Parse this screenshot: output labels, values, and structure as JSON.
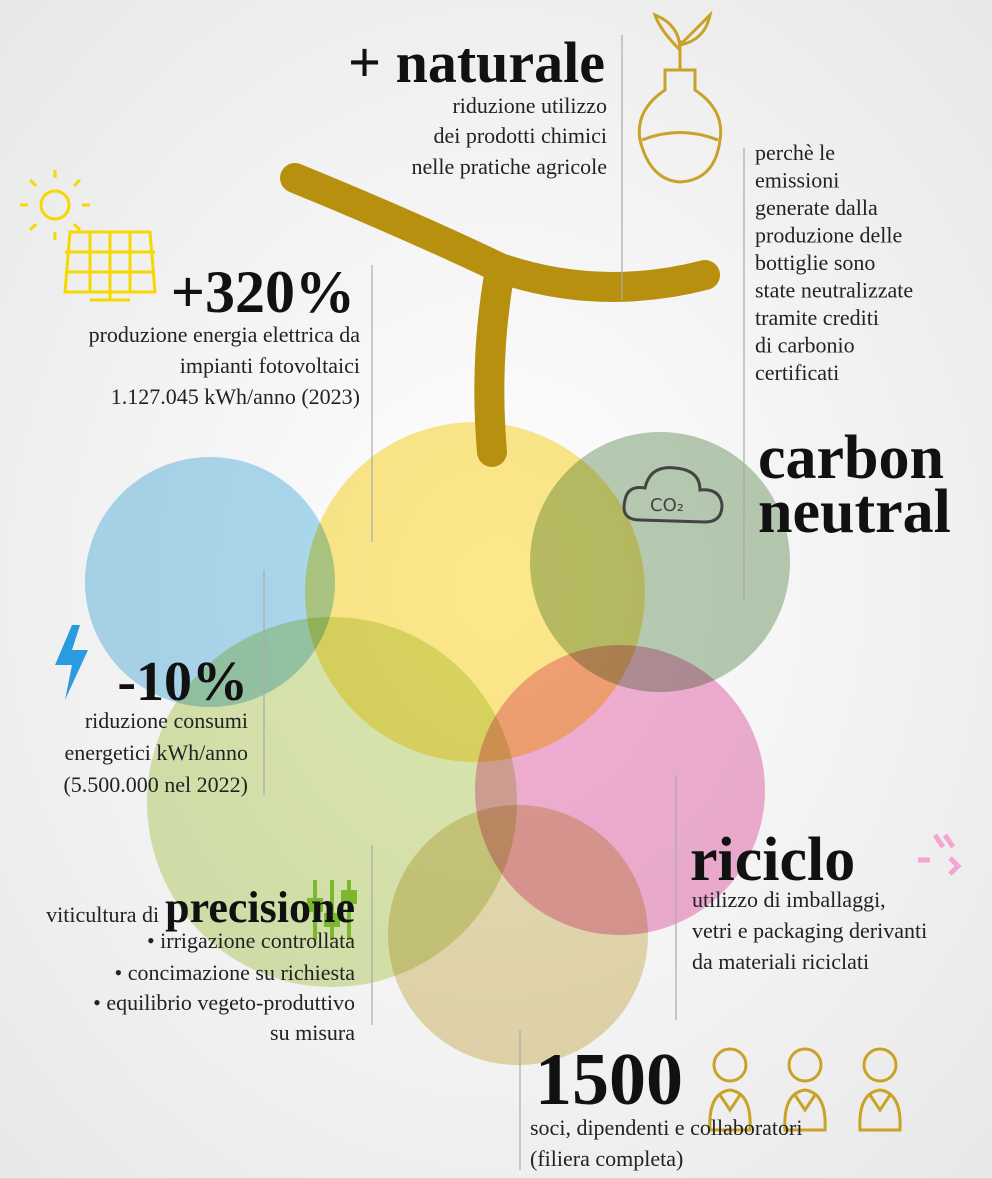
{
  "naturale": {
    "title": "+ naturale",
    "lines": [
      "riduzione utilizzo",
      "dei prodotti chimici",
      "nelle pratiche agricole"
    ]
  },
  "carbon": {
    "note": [
      "perchè le",
      "emissioni",
      "generate dalla",
      "produzione delle",
      "bottiglie sono",
      "state neutralizzate",
      "tramite crediti",
      "di carbonio",
      "certificati"
    ],
    "title": [
      "carbon",
      "neutral"
    ]
  },
  "solar": {
    "title": "+320%",
    "lines": [
      "produzione energia elettrica da",
      "impianti fotovoltaici",
      "1.127.045 kWh/anno (2023)"
    ]
  },
  "energy": {
    "title": "-10%",
    "lines": [
      "riduzione consumi",
      "energetici kWh/anno",
      "(5.500.000 nel 2022)"
    ]
  },
  "riciclo": {
    "title": "riciclo",
    "lines": [
      "utilizzo di imballaggi,",
      "vetri e packaging derivanti",
      "da materiali riciclati"
    ]
  },
  "precisione": {
    "prefix": "viticultura di",
    "title": "precisione",
    "bullets": [
      "• irrigazione controllata",
      "• concimazione su richiesta",
      "• equilibrio vegeto-produttivo",
      "su misura"
    ]
  },
  "people": {
    "title": "1500",
    "lines": [
      "soci, dipendenti e collaboratori",
      "(filiera completa)"
    ]
  }
}
